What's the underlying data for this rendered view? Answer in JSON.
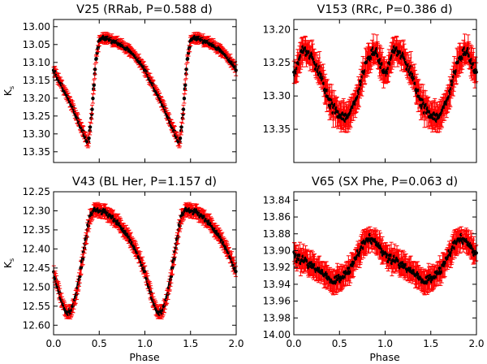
{
  "chart_data": [
    {
      "type": "scatter",
      "title": "V25 (RRab, P=0.588 d)",
      "xlabel": "",
      "ylabel": "K_s",
      "xlim": [
        0.0,
        2.0
      ],
      "ylim": [
        12.98,
        13.38
      ],
      "y_inverted": true,
      "xticks": [
        "",
        "",
        "",
        "",
        ""
      ],
      "yticks": [
        "13.00",
        "13.05",
        "13.10",
        "13.15",
        "13.20",
        "13.25",
        "13.30",
        "13.35"
      ],
      "ytick_values": [
        13.0,
        13.05,
        13.1,
        13.15,
        13.2,
        13.25,
        13.3,
        13.35
      ],
      "marker_color": "#000000",
      "errorbar_color": "#ff0000",
      "light_curve": {
        "phase": [
          0.0,
          0.1,
          0.2,
          0.3,
          0.38,
          0.42,
          0.46,
          0.5,
          0.55,
          0.65,
          0.75,
          0.85,
          0.95,
          1.0
        ],
        "mag": [
          13.12,
          13.17,
          13.22,
          13.28,
          13.33,
          13.24,
          13.1,
          13.04,
          13.03,
          13.04,
          13.05,
          13.07,
          13.1,
          13.12
        ]
      },
      "error": 0.012
    },
    {
      "type": "scatter",
      "title": "V153 (RRc, P=0.386 d)",
      "xlabel": "",
      "ylabel": "",
      "xlim": [
        0.0,
        2.0
      ],
      "ylim": [
        13.185,
        13.4
      ],
      "y_inverted": true,
      "xticks": [
        "",
        "",
        "",
        "",
        ""
      ],
      "yticks": [
        "13.20",
        "13.25",
        "13.30",
        "13.35"
      ],
      "ytick_values": [
        13.2,
        13.25,
        13.3,
        13.35
      ],
      "marker_color": "#000000",
      "errorbar_color": "#ff0000",
      "light_curve": {
        "phase": [
          0.0,
          0.1,
          0.2,
          0.3,
          0.4,
          0.5,
          0.6,
          0.7,
          0.8,
          0.9,
          1.0
        ],
        "mag": [
          13.27,
          13.23,
          13.24,
          13.27,
          13.31,
          13.33,
          13.33,
          13.3,
          13.25,
          13.23,
          13.27
        ]
      },
      "error": 0.018
    },
    {
      "type": "scatter",
      "title": "V43 (BL Her, P=1.157 d)",
      "xlabel": "Phase",
      "ylabel": "K_s",
      "xlim": [
        0.0,
        2.0
      ],
      "ylim": [
        12.25,
        12.625
      ],
      "y_inverted": true,
      "xticks": [
        "0.0",
        "0.5",
        "1.0",
        "1.5",
        "2.0"
      ],
      "xtick_values": [
        0.0,
        0.5,
        1.0,
        1.5,
        2.0
      ],
      "yticks": [
        "12.25",
        "12.30",
        "12.35",
        "12.40",
        "12.45",
        "12.50",
        "12.55",
        "12.60"
      ],
      "ytick_values": [
        12.25,
        12.3,
        12.35,
        12.4,
        12.45,
        12.5,
        12.55,
        12.6
      ],
      "marker_color": "#000000",
      "errorbar_color": "#ff0000",
      "light_curve": {
        "phase": [
          0.0,
          0.08,
          0.15,
          0.2,
          0.25,
          0.3,
          0.35,
          0.4,
          0.45,
          0.55,
          0.6,
          0.7,
          0.8,
          0.9,
          1.0
        ],
        "mag": [
          12.46,
          12.53,
          12.57,
          12.56,
          12.52,
          12.45,
          12.38,
          12.31,
          12.3,
          12.3,
          12.31,
          12.33,
          12.36,
          12.4,
          12.46
        ]
      },
      "error": 0.015
    },
    {
      "type": "scatter",
      "title": "V65 (SX Phe, P=0.063 d)",
      "xlabel": "Phase",
      "ylabel": "",
      "xlim": [
        0.0,
        2.0
      ],
      "ylim": [
        13.83,
        14.0
      ],
      "y_inverted": true,
      "xticks": [
        "0.0",
        "0.5",
        "1.0",
        "1.5",
        "2.0"
      ],
      "xtick_values": [
        0.0,
        0.5,
        1.0,
        1.5,
        2.0
      ],
      "yticks": [
        "13.84",
        "13.86",
        "13.88",
        "13.90",
        "13.92",
        "13.94",
        "13.96",
        "13.98",
        "14.00"
      ],
      "ytick_values": [
        13.84,
        13.86,
        13.88,
        13.9,
        13.92,
        13.94,
        13.96,
        13.98,
        14.0
      ],
      "marker_color": "#000000",
      "errorbar_color": "#ff0000",
      "light_curve": {
        "phase": [
          0.0,
          0.15,
          0.3,
          0.4,
          0.5,
          0.6,
          0.7,
          0.8,
          0.9,
          1.0
        ],
        "mag": [
          13.905,
          13.915,
          13.925,
          13.935,
          13.935,
          13.925,
          13.905,
          13.885,
          13.89,
          13.905
        ]
      },
      "error": 0.012
    }
  ]
}
